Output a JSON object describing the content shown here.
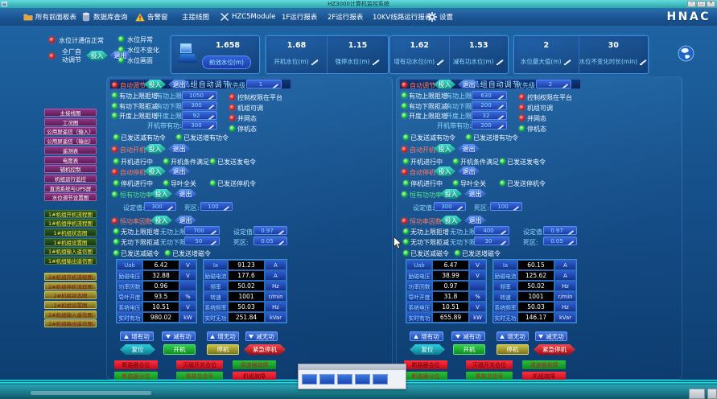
{
  "window": {
    "title": "HZ3000计算机监控系统",
    "controls": [
      "─",
      "□",
      "✕"
    ]
  },
  "menu": {
    "logo": "HNAC",
    "items": [
      {
        "label": "所有前面板表",
        "icon": "folder-icon"
      },
      {
        "label": "数据库查询",
        "icon": "database-icon"
      },
      {
        "label": "告警窗",
        "icon": "alarm-icon"
      },
      {
        "label": "主接线图",
        "icon": ""
      },
      {
        "label": "HZC5Module",
        "icon": "tools-icon"
      },
      {
        "label": "1F运行报表",
        "icon": ""
      },
      {
        "label": "2F运行报表",
        "icon": ""
      },
      {
        "label": "10KV线路运行报表",
        "icon": ""
      },
      {
        "label": "设置",
        "icon": "gear-icon"
      }
    ]
  },
  "status_bar": {
    "comm_label": "水位计通信正常",
    "plant_auto_label": "全厂自动调节",
    "in_label": "投入",
    "out_label": "退出",
    "indicators": [
      "水位异常",
      "水位不变化",
      "水位画面"
    ],
    "forebay": {
      "value": "1.658",
      "label": "前池水位(m)"
    },
    "card_groups": [
      [
        {
          "value": "1.68",
          "label": "开机水位(m)"
        },
        {
          "value": "1.15",
          "label": "强停水位(m)"
        }
      ],
      [
        {
          "value": "1.62",
          "label": "增有功水位(m)"
        },
        {
          "value": "1.53",
          "label": "减有功水位(m)"
        }
      ],
      [
        {
          "value": "2",
          "label": "水位最大值(m)"
        },
        {
          "value": "30",
          "label": "水位不变化时长(min)"
        }
      ]
    ]
  },
  "sidebar": {
    "common": [
      "主接线图",
      "工况图",
      "公用屏遥信（输入）",
      "公用屏遥信（输出）",
      "遥测表",
      "电度表",
      "辅机控制",
      "机组运行监控",
      "直流系统与UPS屏",
      "水位调节设置图"
    ],
    "unit1": [
      "1#机组开机流程图",
      "1#机组停机流程图",
      "1#机组状态图",
      "1#机组设置图",
      "1#机组输入遥信图",
      "1#机组输出遥信图"
    ],
    "unit2": [
      "2#机组开机流程图",
      "2#机组停机流程图",
      "2#机组状态图",
      "2#机组设置图",
      "2#机组输入遥信图",
      "2#机组输出遥信图"
    ]
  },
  "panel_labels": {
    "in": "投入",
    "out": "退出",
    "auto_reg": "自动调节",
    "priority": "优先级:",
    "p_up_block": "有功上限拒增",
    "p_up": "有功上限:",
    "p_dn_block": "有功下限拒减",
    "p_dn": "有功下限:",
    "gv_up_block": "开度上限拒增",
    "gv_up": "开度上限:",
    "start_p": "开机带有功:",
    "perm_platform": "控制权限在平台",
    "unit_adjustable": "机组可调",
    "grid_state": "并网态",
    "stop_state": "停机态",
    "sent_dec_p": "已发送减有功令",
    "sent_inc_p": "已发送增有功令",
    "auto_start": "自动开机",
    "starting": "开机进行中",
    "start_cond": "开机条件满足",
    "sent_gen": "已发送发电令",
    "auto_stop": "自动停机",
    "stopping": "停机进行中",
    "gv_closed": "导叶全关",
    "sent_stop": "已发送停机令",
    "const_p": "恒有功功率",
    "setval": "设定值:",
    "deadband": "死区:",
    "const_pf": "恒功率因数",
    "q_up_block": "无功上限拒增",
    "q_up": "无功上限:",
    "q_dn_block": "无功下限拒减",
    "q_dn": "无功下限:",
    "sent_dec_q": "已发送减磁令",
    "sent_inc_q": "已发送增磁令",
    "inc_p": "增有功",
    "dec_p": "减有功",
    "inc_q": "增无功",
    "dec_q": "减无功",
    "reset": "复位",
    "start": "开机",
    "stop": "停机",
    "estop": "紧急停机",
    "cb_closed": "断路器合位",
    "fcb_closed": "灭磁开关合位",
    "gov_fault": "调速器故障",
    "cb_open": "断路器分位",
    "acc_signal": "事故总信号",
    "unit_fault": "机组故障"
  },
  "units": [
    {
      "title": "1#机组自动调节",
      "priority": "1",
      "p_up": "1050",
      "p_dn": "300",
      "gv_up": "92",
      "start_p": "300",
      "setval": "300",
      "deadband": "100",
      "q_up": "700",
      "q_dn": "50",
      "pf_set": "0.97",
      "pf_dead": "0.05",
      "meas_left": [
        [
          "Uab",
          "6.42",
          "V"
        ],
        [
          "励磁电压",
          "32.88",
          "V"
        ],
        [
          "功率因数",
          "0.96",
          ""
        ],
        [
          "导叶开度",
          "93.5",
          "%"
        ],
        [
          "系统电压",
          "10.51",
          "V"
        ],
        [
          "实时有功",
          "980.02",
          "kW"
        ]
      ],
      "meas_right": [
        [
          "Ia",
          "91.23",
          "A"
        ],
        [
          "励磁电流",
          "177.6",
          "A"
        ],
        [
          "频率",
          "50.02",
          "Hz"
        ],
        [
          "转速",
          "1001",
          "r/min"
        ],
        [
          "系统频率",
          "50.03",
          "Hz"
        ],
        [
          "实时无功",
          "251.84",
          "kVar"
        ]
      ]
    },
    {
      "title": "2#机组自动调节",
      "priority": "2",
      "p_up": "630",
      "p_dn": "200",
      "gv_up": "32",
      "start_p": "200",
      "setval": "300",
      "deadband": "100",
      "q_up": "400",
      "q_dn": "30",
      "pf_set": "0.97",
      "pf_dead": "0.05",
      "meas_left": [
        [
          "Uab",
          "6.47",
          "V"
        ],
        [
          "励磁电压",
          "38.99",
          "V"
        ],
        [
          "功率因数",
          "0.97",
          ""
        ],
        [
          "导叶开度",
          "31.8",
          "%"
        ],
        [
          "系统电压",
          "10.51",
          "V"
        ],
        [
          "实时有功",
          "655.89",
          "kW"
        ]
      ],
      "meas_right": [
        [
          "Ia",
          "60.15",
          "A"
        ],
        [
          "励磁电流",
          "125.62",
          "A"
        ],
        [
          "频率",
          "50.02",
          "Hz"
        ],
        [
          "转速",
          "1001",
          "r/min"
        ],
        [
          "系统频率",
          "50.03",
          "Hz"
        ],
        [
          "实时无功",
          "146.17",
          "kVar"
        ]
      ]
    }
  ],
  "colors": {
    "titlebar_teal": "#2ba4a8",
    "menubar_blue": "#1a5290",
    "background_blue": "#0d3d70",
    "led_red": "#f22018",
    "led_green": "#1ed438",
    "in_button_teal": "#0e8a7a",
    "out_button_blue": "#1c46b0",
    "start_green": "#128a22",
    "stop_olive": "#7a7418",
    "estop_red": "#a00a12"
  }
}
